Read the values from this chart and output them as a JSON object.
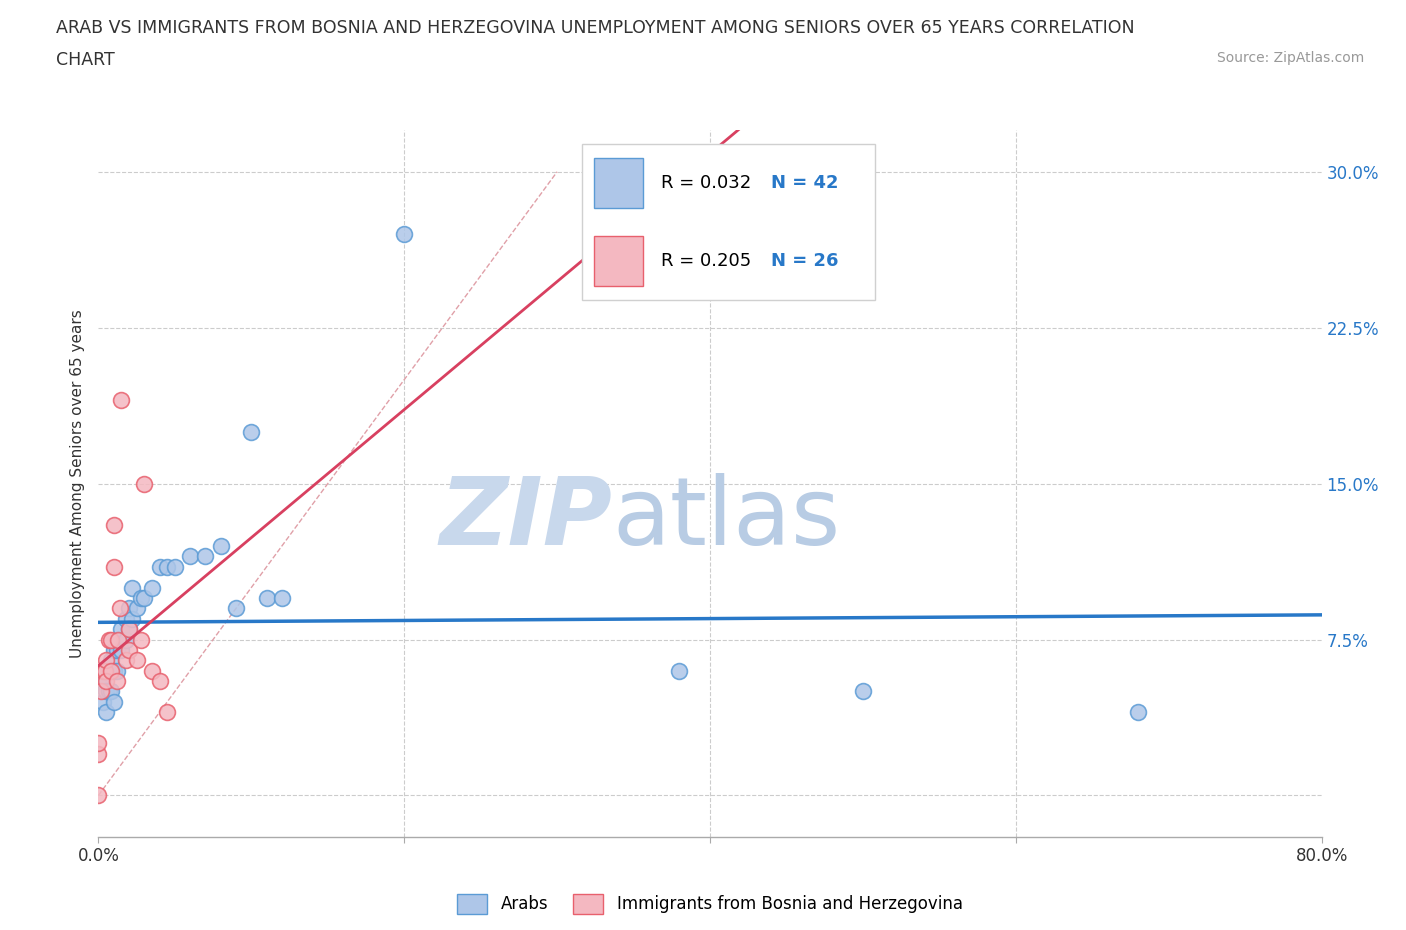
{
  "title_line1": "ARAB VS IMMIGRANTS FROM BOSNIA AND HERZEGOVINA UNEMPLOYMENT AMONG SENIORS OVER 65 YEARS CORRELATION",
  "title_line2": "CHART",
  "source_text": "Source: ZipAtlas.com",
  "ylabel": "Unemployment Among Seniors over 65 years",
  "xlim": [
    0.0,
    0.8
  ],
  "ylim": [
    -0.02,
    0.32
  ],
  "yticks": [
    0.0,
    0.075,
    0.15,
    0.225,
    0.3
  ],
  "ytick_labels_right": [
    "",
    "7.5%",
    "15.0%",
    "22.5%",
    "30.0%"
  ],
  "xticks": [
    0.0,
    0.2,
    0.4,
    0.6,
    0.8
  ],
  "xtick_labels": [
    "0.0%",
    "",
    "",
    "",
    "80.0%"
  ],
  "grid_color": "#cccccc",
  "watermark_zip": "ZIP",
  "watermark_atlas": "atlas",
  "arab_color": "#aec6e8",
  "arab_edge_color": "#5b9bd5",
  "bosnia_color": "#f4b8c1",
  "bosnia_edge_color": "#e8606d",
  "arab_R": 0.032,
  "arab_N": 42,
  "bosnia_R": 0.205,
  "bosnia_N": 26,
  "arab_scatter_x": [
    0.0,
    0.003,
    0.003,
    0.005,
    0.005,
    0.005,
    0.007,
    0.007,
    0.008,
    0.008,
    0.01,
    0.01,
    0.01,
    0.012,
    0.012,
    0.013,
    0.015,
    0.015,
    0.018,
    0.018,
    0.02,
    0.02,
    0.022,
    0.022,
    0.025,
    0.028,
    0.03,
    0.035,
    0.04,
    0.045,
    0.05,
    0.06,
    0.07,
    0.08,
    0.09,
    0.1,
    0.11,
    0.12,
    0.2,
    0.38,
    0.5,
    0.68
  ],
  "arab_scatter_y": [
    0.055,
    0.045,
    0.055,
    0.04,
    0.05,
    0.06,
    0.05,
    0.06,
    0.05,
    0.065,
    0.045,
    0.06,
    0.07,
    0.06,
    0.07,
    0.075,
    0.07,
    0.08,
    0.075,
    0.085,
    0.08,
    0.09,
    0.085,
    0.1,
    0.09,
    0.095,
    0.095,
    0.1,
    0.11,
    0.11,
    0.11,
    0.115,
    0.115,
    0.12,
    0.09,
    0.175,
    0.095,
    0.095,
    0.27,
    0.06,
    0.05,
    0.04
  ],
  "bosnia_scatter_x": [
    0.0,
    0.0,
    0.0,
    0.002,
    0.003,
    0.004,
    0.005,
    0.005,
    0.007,
    0.008,
    0.008,
    0.01,
    0.01,
    0.012,
    0.013,
    0.014,
    0.015,
    0.018,
    0.02,
    0.02,
    0.025,
    0.028,
    0.03,
    0.035,
    0.04,
    0.045
  ],
  "bosnia_scatter_y": [
    0.0,
    0.02,
    0.025,
    0.05,
    0.06,
    0.06,
    0.055,
    0.065,
    0.075,
    0.06,
    0.075,
    0.11,
    0.13,
    0.055,
    0.075,
    0.09,
    0.19,
    0.065,
    0.07,
    0.08,
    0.065,
    0.075,
    0.15,
    0.06,
    0.055,
    0.04
  ],
  "legend_R_color": "#2878c8",
  "trend_line_color_arab": "#2878c8",
  "trend_line_color_bosnia": "#d84060",
  "diagonal_color": "#d0d0d0",
  "legend_border_color": "#d0d0d0",
  "axis_label_color": "#333333",
  "right_tick_color": "#2878c8",
  "watermark_color": "#c8d8ec",
  "title_color": "#333333"
}
